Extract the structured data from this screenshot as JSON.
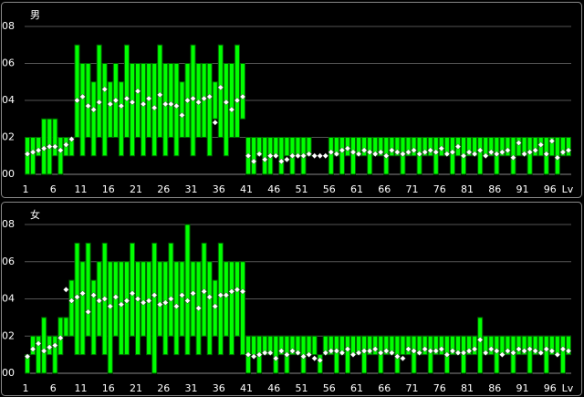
{
  "chart_data": [
    {
      "type": "range_bar",
      "title": "男",
      "xlabel": "Lv",
      "categories": [
        "1",
        null,
        null,
        null,
        null,
        "6",
        null,
        null,
        null,
        null,
        "11",
        null,
        null,
        null,
        null,
        "16",
        null,
        null,
        null,
        null,
        "21",
        null,
        null,
        null,
        null,
        "26",
        null,
        null,
        null,
        null,
        "31",
        null,
        null,
        null,
        null,
        "36",
        null,
        null,
        null,
        null,
        "41",
        null,
        null,
        null,
        null,
        "46",
        null,
        null,
        null,
        null,
        "51",
        null,
        null,
        null,
        null,
        "56",
        null,
        null,
        null,
        null,
        "61",
        null,
        null,
        null,
        null,
        "66",
        null,
        null,
        null,
        null,
        "71",
        null,
        null,
        null,
        null,
        "76",
        null,
        null,
        null,
        null,
        "81",
        null,
        null,
        null,
        null,
        "86",
        null,
        null,
        null,
        null,
        "91",
        null,
        null,
        null,
        null,
        "96",
        null,
        null,
        null
      ],
      "low": [
        0,
        0,
        1,
        0,
        0,
        1,
        0,
        1,
        1,
        2,
        1,
        2,
        1,
        2,
        1,
        2,
        2,
        1,
        2,
        1,
        2,
        1,
        2,
        1,
        2,
        1,
        2,
        1,
        2,
        2,
        1,
        2,
        2,
        1,
        3,
        2,
        1,
        2,
        2,
        3,
        0,
        0,
        1,
        0,
        0,
        1,
        0,
        1,
        0,
        1,
        0,
        1,
        1,
        1,
        1,
        0,
        1,
        0,
        1,
        0,
        1,
        1,
        0,
        1,
        1,
        0,
        1,
        1,
        0,
        1,
        1,
        0,
        1,
        1,
        0,
        1,
        1,
        0,
        1,
        0,
        1,
        1,
        0,
        1,
        1,
        0,
        1,
        1,
        0,
        1,
        1,
        0,
        1,
        1,
        0,
        1,
        0,
        1,
        1
      ],
      "high": [
        2,
        2,
        2,
        3,
        3,
        3,
        2,
        2,
        2,
        7,
        6,
        6,
        5,
        7,
        6,
        5,
        6,
        5,
        7,
        6,
        6,
        6,
        6,
        6,
        7,
        6,
        6,
        6,
        5,
        6,
        7,
        6,
        6,
        6,
        5,
        7,
        6,
        6,
        7,
        6,
        2,
        2,
        2,
        2,
        2,
        2,
        2,
        2,
        2,
        2,
        2,
        2,
        1,
        1,
        1,
        2,
        2,
        2,
        2,
        2,
        2,
        2,
        2,
        2,
        2,
        2,
        2,
        2,
        2,
        2,
        2,
        2,
        2,
        2,
        2,
        2,
        2,
        2,
        2,
        2,
        2,
        2,
        2,
        2,
        2,
        2,
        2,
        2,
        2,
        2,
        2,
        2,
        2,
        2,
        2,
        2,
        2,
        2,
        2
      ],
      "avg": [
        1.1,
        1.2,
        1.3,
        1.4,
        1.5,
        1.5,
        1.3,
        1.6,
        1.9,
        4.0,
        4.2,
        3.7,
        3.5,
        3.9,
        4.6,
        3.8,
        4.0,
        3.7,
        4.1,
        3.9,
        4.5,
        3.8,
        4.1,
        3.6,
        4.3,
        3.8,
        3.8,
        3.7,
        3.2,
        4.0,
        4.1,
        3.9,
        4.1,
        4.2,
        2.8,
        4.7,
        3.9,
        3.5,
        4.0,
        4.2,
        1.0,
        0.7,
        1.1,
        0.8,
        1.0,
        1.0,
        0.7,
        0.8,
        1.0,
        1.0,
        1.0,
        1.1,
        1.0,
        1.0,
        1.0,
        1.2,
        1.1,
        1.3,
        1.4,
        1.2,
        1.1,
        1.3,
        1.2,
        1.1,
        1.2,
        1.0,
        1.3,
        1.2,
        1.1,
        1.2,
        1.3,
        1.1,
        1.2,
        1.3,
        1.2,
        1.4,
        1.1,
        1.2,
        1.5,
        1.0,
        1.2,
        1.1,
        1.3,
        1.0,
        1.2,
        1.1,
        1.2,
        1.3,
        0.9,
        1.7,
        1.1,
        1.2,
        1.3,
        1.6,
        1.1,
        1.8,
        0.9,
        1.2,
        1.3
      ],
      "ylim": [
        0,
        8
      ],
      "yticks": [
        {
          "value": 0,
          "label": "00"
        },
        {
          "value": 2,
          "label": "02"
        },
        {
          "value": 4,
          "label": "04"
        },
        {
          "value": 6,
          "label": "06"
        },
        {
          "value": 8,
          "label": "08"
        }
      ],
      "grid": true,
      "color": "#00ff00",
      "marker_color": "#ffffff"
    },
    {
      "type": "range_bar",
      "title": "女",
      "xlabel": "Lv",
      "categories": [
        "1",
        null,
        null,
        null,
        null,
        "6",
        null,
        null,
        null,
        null,
        "11",
        null,
        null,
        null,
        null,
        "16",
        null,
        null,
        null,
        null,
        "21",
        null,
        null,
        null,
        null,
        "26",
        null,
        null,
        null,
        null,
        "31",
        null,
        null,
        null,
        null,
        "36",
        null,
        null,
        null,
        null,
        "41",
        null,
        null,
        null,
        null,
        "46",
        null,
        null,
        null,
        null,
        "51",
        null,
        null,
        null,
        null,
        "56",
        null,
        null,
        null,
        null,
        "61",
        null,
        null,
        null,
        null,
        "66",
        null,
        null,
        null,
        null,
        "71",
        null,
        null,
        null,
        null,
        "76",
        null,
        null,
        null,
        null,
        "81",
        null,
        null,
        null,
        null,
        "86",
        null,
        null,
        null,
        null,
        "91",
        null,
        null,
        null,
        null,
        "96",
        null,
        null,
        null
      ],
      "low": [
        0,
        1,
        0,
        0,
        1,
        0,
        1,
        2,
        2,
        1,
        1,
        2,
        1,
        2,
        1,
        0,
        2,
        1,
        1,
        2,
        1,
        2,
        1,
        0,
        2,
        1,
        2,
        1,
        2,
        1,
        2,
        1,
        2,
        1,
        2,
        1,
        2,
        1,
        2,
        1,
        0,
        1,
        0,
        1,
        1,
        0,
        1,
        0,
        1,
        1,
        0,
        1,
        1,
        0,
        1,
        1,
        0,
        1,
        0,
        1,
        1,
        0,
        1,
        1,
        0,
        1,
        1,
        0,
        1,
        1,
        0,
        1,
        1,
        0,
        1,
        1,
        0,
        1,
        1,
        0,
        1,
        1,
        0,
        1,
        1,
        0,
        1,
        1,
        0,
        1,
        1,
        0,
        1,
        1,
        0,
        1,
        1,
        0,
        1
      ],
      "high": [
        1,
        2,
        2,
        3,
        2,
        2,
        3,
        3,
        5,
        7,
        6,
        7,
        5,
        6,
        7,
        6,
        6,
        6,
        6,
        7,
        6,
        6,
        6,
        7,
        6,
        6,
        7,
        6,
        6,
        8,
        6,
        6,
        7,
        6,
        5,
        7,
        6,
        6,
        6,
        6,
        2,
        2,
        2,
        2,
        2,
        2,
        2,
        2,
        2,
        2,
        2,
        2,
        2,
        1,
        2,
        2,
        2,
        2,
        2,
        2,
        2,
        2,
        2,
        2,
        2,
        2,
        2,
        2,
        2,
        2,
        2,
        2,
        2,
        2,
        2,
        2,
        2,
        2,
        2,
        2,
        2,
        2,
        3,
        2,
        2,
        2,
        2,
        2,
        2,
        2,
        2,
        2,
        2,
        2,
        2,
        2,
        2,
        2,
        2
      ],
      "avg": [
        0.9,
        1.3,
        1.6,
        1.2,
        1.4,
        1.5,
        1.9,
        4.5,
        3.9,
        4.1,
        4.3,
        3.3,
        4.2,
        3.9,
        4.0,
        3.6,
        4.1,
        3.7,
        3.9,
        4.3,
        4.0,
        3.8,
        3.9,
        4.2,
        3.7,
        3.8,
        4.0,
        3.6,
        4.2,
        3.9,
        4.3,
        3.5,
        4.4,
        4.1,
        3.6,
        4.2,
        4.2,
        4.4,
        4.5,
        4.4,
        1.0,
        0.9,
        1.0,
        1.1,
        1.1,
        0.8,
        1.2,
        1.0,
        1.2,
        1.1,
        0.9,
        1.0,
        0.8,
        0.7,
        1.1,
        1.2,
        1.2,
        1.1,
        1.3,
        1.0,
        1.1,
        1.2,
        1.2,
        1.3,
        1.1,
        1.2,
        1.1,
        0.9,
        0.8,
        1.3,
        1.2,
        1.1,
        1.3,
        1.2,
        1.2,
        1.3,
        1.0,
        1.2,
        1.1,
        1.1,
        1.2,
        1.3,
        1.8,
        1.1,
        1.3,
        1.2,
        1.0,
        1.2,
        1.1,
        1.3,
        1.2,
        1.3,
        1.2,
        1.1,
        1.3,
        1.2,
        1.0,
        1.3,
        1.2
      ],
      "ylim": [
        0,
        8
      ],
      "yticks": [
        {
          "value": 0,
          "label": "00"
        },
        {
          "value": 2,
          "label": "02"
        },
        {
          "value": 4,
          "label": "04"
        },
        {
          "value": 6,
          "label": "06"
        },
        {
          "value": 8,
          "label": "08"
        }
      ],
      "grid": true,
      "color": "#00ff00",
      "marker_color": "#ffffff"
    }
  ]
}
